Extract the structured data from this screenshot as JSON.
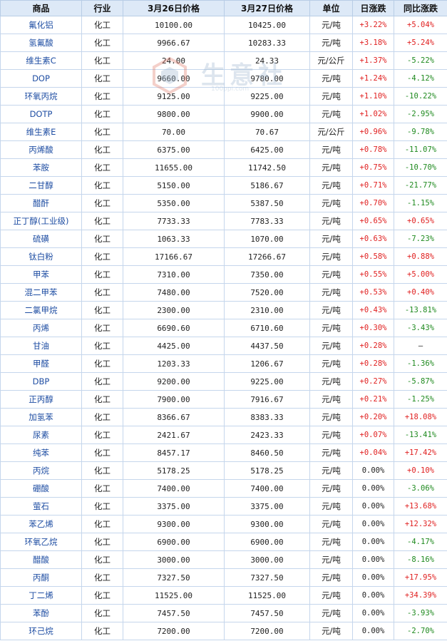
{
  "table": {
    "headers": [
      "商品",
      "行业",
      "3月26日价格",
      "3月27日价格",
      "单位",
      "日涨跌",
      "同比涨跌"
    ],
    "rows": [
      {
        "name": "氟化铝",
        "industry": "化工",
        "price1": "10100.00",
        "price2": "10425.00",
        "unit": "元/吨",
        "day": "+3.22%",
        "yoy": "+5.04%"
      },
      {
        "name": "氢氟酸",
        "industry": "化工",
        "price1": "9966.67",
        "price2": "10283.33",
        "unit": "元/吨",
        "day": "+3.18%",
        "yoy": "+5.24%"
      },
      {
        "name": "维生素C",
        "industry": "化工",
        "price1": "24.00",
        "price2": "24.33",
        "unit": "元/公斤",
        "day": "+1.37%",
        "yoy": "-5.22%"
      },
      {
        "name": "DOP",
        "industry": "化工",
        "price1": "9660.00",
        "price2": "9780.00",
        "unit": "元/吨",
        "day": "+1.24%",
        "yoy": "-4.12%"
      },
      {
        "name": "环氧丙烷",
        "industry": "化工",
        "price1": "9125.00",
        "price2": "9225.00",
        "unit": "元/吨",
        "day": "+1.10%",
        "yoy": "-10.22%"
      },
      {
        "name": "DOTP",
        "industry": "化工",
        "price1": "9800.00",
        "price2": "9900.00",
        "unit": "元/吨",
        "day": "+1.02%",
        "yoy": "-2.95%"
      },
      {
        "name": "维生素E",
        "industry": "化工",
        "price1": "70.00",
        "price2": "70.67",
        "unit": "元/公斤",
        "day": "+0.96%",
        "yoy": "-9.78%"
      },
      {
        "name": "丙烯酸",
        "industry": "化工",
        "price1": "6375.00",
        "price2": "6425.00",
        "unit": "元/吨",
        "day": "+0.78%",
        "yoy": "-11.07%"
      },
      {
        "name": "苯胺",
        "industry": "化工",
        "price1": "11655.00",
        "price2": "11742.50",
        "unit": "元/吨",
        "day": "+0.75%",
        "yoy": "-10.70%"
      },
      {
        "name": "二甘醇",
        "industry": "化工",
        "price1": "5150.00",
        "price2": "5186.67",
        "unit": "元/吨",
        "day": "+0.71%",
        "yoy": "-21.77%"
      },
      {
        "name": "醋酐",
        "industry": "化工",
        "price1": "5350.00",
        "price2": "5387.50",
        "unit": "元/吨",
        "day": "+0.70%",
        "yoy": "-1.15%"
      },
      {
        "name": "正丁醇(工业级)",
        "industry": "化工",
        "price1": "7733.33",
        "price2": "7783.33",
        "unit": "元/吨",
        "day": "+0.65%",
        "yoy": "+0.65%"
      },
      {
        "name": "硫磺",
        "industry": "化工",
        "price1": "1063.33",
        "price2": "1070.00",
        "unit": "元/吨",
        "day": "+0.63%",
        "yoy": "-7.23%"
      },
      {
        "name": "钛白粉",
        "industry": "化工",
        "price1": "17166.67",
        "price2": "17266.67",
        "unit": "元/吨",
        "day": "+0.58%",
        "yoy": "+0.88%"
      },
      {
        "name": "甲苯",
        "industry": "化工",
        "price1": "7310.00",
        "price2": "7350.00",
        "unit": "元/吨",
        "day": "+0.55%",
        "yoy": "+5.00%"
      },
      {
        "name": "混二甲苯",
        "industry": "化工",
        "price1": "7480.00",
        "price2": "7520.00",
        "unit": "元/吨",
        "day": "+0.53%",
        "yoy": "+0.40%"
      },
      {
        "name": "二氯甲烷",
        "industry": "化工",
        "price1": "2300.00",
        "price2": "2310.00",
        "unit": "元/吨",
        "day": "+0.43%",
        "yoy": "-13.81%"
      },
      {
        "name": "丙烯",
        "industry": "化工",
        "price1": "6690.60",
        "price2": "6710.60",
        "unit": "元/吨",
        "day": "+0.30%",
        "yoy": "-3.43%"
      },
      {
        "name": "甘油",
        "industry": "化工",
        "price1": "4425.00",
        "price2": "4437.50",
        "unit": "元/吨",
        "day": "+0.28%",
        "yoy": "—"
      },
      {
        "name": "甲醛",
        "industry": "化工",
        "price1": "1203.33",
        "price2": "1206.67",
        "unit": "元/吨",
        "day": "+0.28%",
        "yoy": "-1.36%"
      },
      {
        "name": "DBP",
        "industry": "化工",
        "price1": "9200.00",
        "price2": "9225.00",
        "unit": "元/吨",
        "day": "+0.27%",
        "yoy": "-5.87%"
      },
      {
        "name": "正丙醇",
        "industry": "化工",
        "price1": "7900.00",
        "price2": "7916.67",
        "unit": "元/吨",
        "day": "+0.21%",
        "yoy": "-1.25%"
      },
      {
        "name": "加氢苯",
        "industry": "化工",
        "price1": "8366.67",
        "price2": "8383.33",
        "unit": "元/吨",
        "day": "+0.20%",
        "yoy": "+18.08%"
      },
      {
        "name": "尿素",
        "industry": "化工",
        "price1": "2421.67",
        "price2": "2423.33",
        "unit": "元/吨",
        "day": "+0.07%",
        "yoy": "-13.41%"
      },
      {
        "name": "纯苯",
        "industry": "化工",
        "price1": "8457.17",
        "price2": "8460.50",
        "unit": "元/吨",
        "day": "+0.04%",
        "yoy": "+17.42%"
      },
      {
        "name": "丙烷",
        "industry": "化工",
        "price1": "5178.25",
        "price2": "5178.25",
        "unit": "元/吨",
        "day": "0.00%",
        "yoy": "+0.10%"
      },
      {
        "name": "硼酸",
        "industry": "化工",
        "price1": "7400.00",
        "price2": "7400.00",
        "unit": "元/吨",
        "day": "0.00%",
        "yoy": "-3.06%"
      },
      {
        "name": "萤石",
        "industry": "化工",
        "price1": "3375.00",
        "price2": "3375.00",
        "unit": "元/吨",
        "day": "0.00%",
        "yoy": "+13.68%"
      },
      {
        "name": "苯乙烯",
        "industry": "化工",
        "price1": "9300.00",
        "price2": "9300.00",
        "unit": "元/吨",
        "day": "0.00%",
        "yoy": "+12.32%"
      },
      {
        "name": "环氧乙烷",
        "industry": "化工",
        "price1": "6900.00",
        "price2": "6900.00",
        "unit": "元/吨",
        "day": "0.00%",
        "yoy": "-4.17%"
      },
      {
        "name": "醋酸",
        "industry": "化工",
        "price1": "3000.00",
        "price2": "3000.00",
        "unit": "元/吨",
        "day": "0.00%",
        "yoy": "-8.16%"
      },
      {
        "name": "丙酮",
        "industry": "化工",
        "price1": "7327.50",
        "price2": "7327.50",
        "unit": "元/吨",
        "day": "0.00%",
        "yoy": "+17.95%"
      },
      {
        "name": "丁二烯",
        "industry": "化工",
        "price1": "11525.00",
        "price2": "11525.00",
        "unit": "元/吨",
        "day": "0.00%",
        "yoy": "+34.39%"
      },
      {
        "name": "苯酚",
        "industry": "化工",
        "price1": "7457.50",
        "price2": "7457.50",
        "unit": "元/吨",
        "day": "0.00%",
        "yoy": "-3.93%"
      },
      {
        "name": "环己烷",
        "industry": "化工",
        "price1": "7200.00",
        "price2": "7200.00",
        "unit": "元/吨",
        "day": "0.00%",
        "yoy": "-2.70%"
      }
    ]
  },
  "watermark": {
    "text": "生意社",
    "url": "100ppi.com"
  },
  "colors": {
    "up": "#e02020",
    "down": "#1f8a1f",
    "flat": "#222222",
    "header_bg": "#dde9f7",
    "name_link": "#1f4ea3"
  }
}
